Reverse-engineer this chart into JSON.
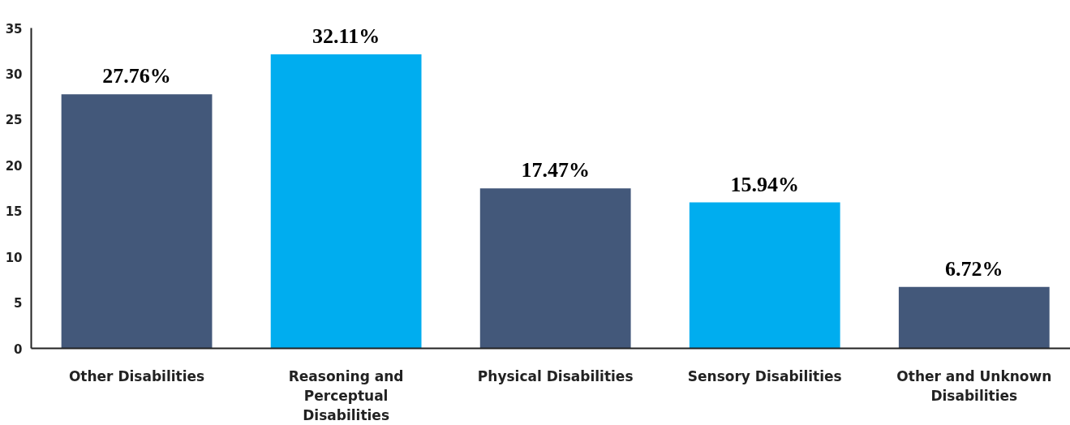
{
  "chart_data": {
    "type": "bar",
    "categories": [
      "Other Disabilities",
      "Reasoning and Perceptual Disabilities",
      "Physical Disabilities",
      "Sensory Disabilities",
      "Other and Unknown Disabilities"
    ],
    "values": [
      27.76,
      32.11,
      17.47,
      15.94,
      6.72
    ],
    "colors": [
      "#43587a",
      "#00adef",
      "#43587a",
      "#00adef",
      "#43587a"
    ],
    "value_labels": [
      "27.76%",
      "32.11%",
      "17.47%",
      "15.94%",
      "6.72%"
    ],
    "ylim": [
      0,
      35
    ],
    "yticks": [
      0,
      5,
      10,
      15,
      20,
      25,
      30,
      35
    ],
    "grid": false
  }
}
